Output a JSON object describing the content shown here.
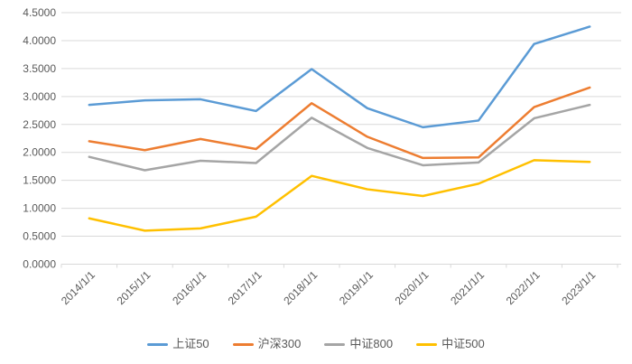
{
  "chart_data": {
    "type": "line",
    "title": "",
    "xlabel": "",
    "ylabel": "",
    "categories": [
      "2014/1/1",
      "2015/1/1",
      "2016/1/1",
      "2017/1/1",
      "2018/1/1",
      "2019/1/1",
      "2020/1/1",
      "2021/1/1",
      "2022/1/1",
      "2023/1/1"
    ],
    "series": [
      {
        "name": "上证50",
        "color": "#5B9BD5",
        "values": [
          2.85,
          2.93,
          2.95,
          2.74,
          3.49,
          2.79,
          2.45,
          2.57,
          3.94,
          4.25
        ]
      },
      {
        "name": "沪深300",
        "color": "#ED7D31",
        "values": [
          2.2,
          2.04,
          2.24,
          2.06,
          2.88,
          2.28,
          1.9,
          1.91,
          2.81,
          3.16
        ]
      },
      {
        "name": "中证800",
        "color": "#A5A5A5",
        "values": [
          1.92,
          1.68,
          1.85,
          1.81,
          2.62,
          2.08,
          1.77,
          1.82,
          2.61,
          2.85
        ]
      },
      {
        "name": "中证500",
        "color": "#FFC000",
        "values": [
          0.82,
          0.6,
          0.64,
          0.85,
          1.58,
          1.34,
          1.22,
          1.44,
          1.86,
          1.83
        ]
      }
    ],
    "ylim": [
      0,
      4.5
    ],
    "y_step": 0.5,
    "y_tick_labels": [
      "0.0000",
      "0.5000",
      "1.0000",
      "1.5000",
      "2.0000",
      "2.5000",
      "3.0000",
      "3.5000",
      "4.0000",
      "4.5000"
    ],
    "grid": true,
    "legend_position": "bottom",
    "styles": {
      "text_color": "#595959",
      "gridline_color": "#D9D9D9",
      "axis_color": "#D9D9D9",
      "background": "#FFFFFF"
    }
  }
}
